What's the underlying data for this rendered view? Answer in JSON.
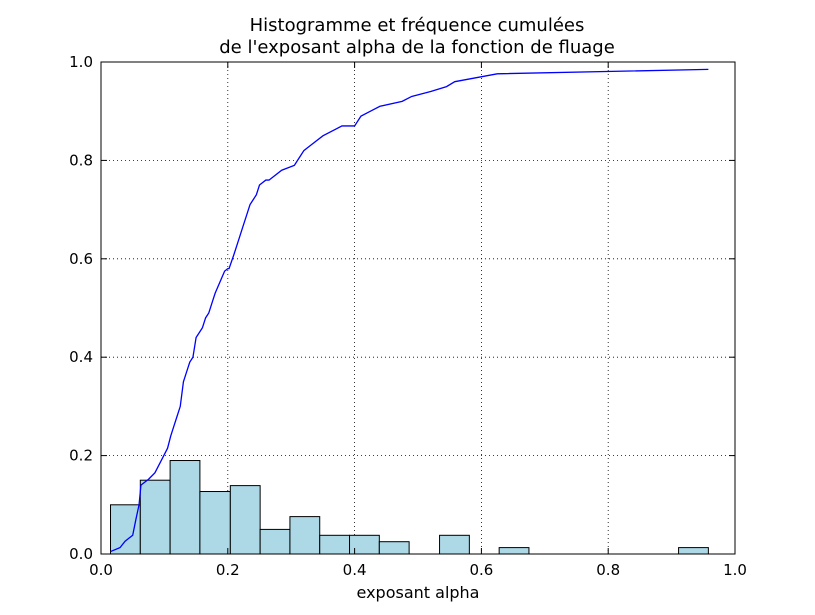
{
  "chart_data": {
    "type": "bar",
    "title_lines": [
      "Histogramme et fréquence cumulées",
      "de l'exposant alpha de la fonction de fluage"
    ],
    "xlabel": "exposant alpha",
    "ylabel": "",
    "xlim": [
      0.0,
      1.0
    ],
    "ylim": [
      0.0,
      1.0
    ],
    "grid": true,
    "xticks": [
      0.0,
      0.2,
      0.4,
      0.6,
      0.8,
      1.0
    ],
    "yticks": [
      0.0,
      0.2,
      0.4,
      0.6,
      0.8,
      1.0
    ],
    "xtick_labels": [
      "0.0",
      "0.2",
      "0.4",
      "0.6",
      "0.8",
      "1.0"
    ],
    "ytick_labels": [
      "0.0",
      "0.2",
      "0.4",
      "0.6",
      "0.8",
      "1.0"
    ],
    "histogram": {
      "bin_edges": [
        0.015,
        0.062,
        0.109,
        0.156,
        0.204,
        0.251,
        0.298,
        0.345,
        0.392,
        0.439,
        0.486,
        0.534,
        0.581,
        0.628,
        0.675,
        0.722,
        0.769,
        0.817,
        0.864,
        0.911,
        0.958
      ],
      "values": [
        0.1,
        0.15,
        0.19,
        0.127,
        0.139,
        0.05,
        0.076,
        0.038,
        0.038,
        0.025,
        0.0,
        0.038,
        0.0,
        0.013,
        0.0,
        0.0,
        0.0,
        0.0,
        0.0,
        0.013
      ],
      "fill_color": "#add8e6",
      "edge_color": "#000000"
    },
    "cumulative": {
      "color": "#0000ff",
      "x": [
        0.015,
        0.03,
        0.038,
        0.05,
        0.055,
        0.06,
        0.063,
        0.075,
        0.085,
        0.095,
        0.105,
        0.11,
        0.115,
        0.12,
        0.125,
        0.13,
        0.135,
        0.14,
        0.145,
        0.15,
        0.155,
        0.16,
        0.165,
        0.17,
        0.175,
        0.18,
        0.19,
        0.195,
        0.2,
        0.202,
        0.21,
        0.215,
        0.22,
        0.225,
        0.23,
        0.235,
        0.24,
        0.245,
        0.25,
        0.26,
        0.265,
        0.285,
        0.305,
        0.31,
        0.315,
        0.32,
        0.33,
        0.35,
        0.38,
        0.4,
        0.41,
        0.425,
        0.44,
        0.475,
        0.49,
        0.52,
        0.545,
        0.558,
        0.625,
        0.958
      ],
      "y": [
        0.005,
        0.013,
        0.026,
        0.038,
        0.07,
        0.1,
        0.14,
        0.152,
        0.165,
        0.19,
        0.215,
        0.24,
        0.26,
        0.28,
        0.3,
        0.35,
        0.37,
        0.39,
        0.4,
        0.44,
        0.45,
        0.46,
        0.48,
        0.49,
        0.51,
        0.53,
        0.56,
        0.575,
        0.58,
        0.58,
        0.61,
        0.63,
        0.65,
        0.67,
        0.69,
        0.71,
        0.72,
        0.73,
        0.75,
        0.76,
        0.76,
        0.78,
        0.79,
        0.8,
        0.81,
        0.82,
        0.83,
        0.85,
        0.87,
        0.87,
        0.89,
        0.9,
        0.91,
        0.92,
        0.93,
        0.94,
        0.95,
        0.96,
        0.976,
        0.985
      ]
    }
  }
}
